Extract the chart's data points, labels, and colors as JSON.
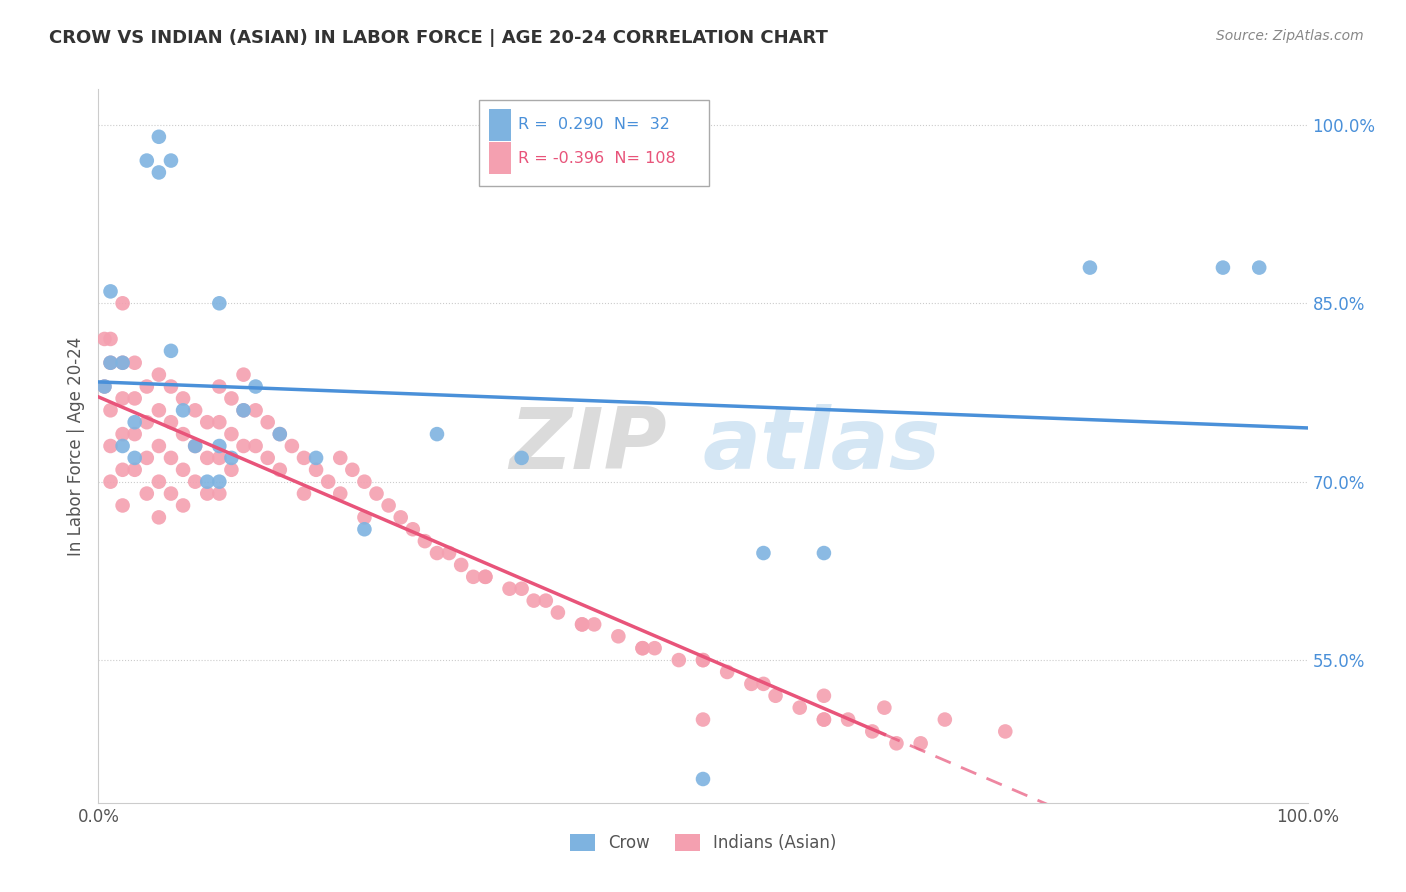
{
  "title": "CROW VS INDIAN (ASIAN) IN LABOR FORCE | AGE 20-24 CORRELATION CHART",
  "source": "Source: ZipAtlas.com",
  "ylabel": "In Labor Force | Age 20-24",
  "xlim": [
    0.0,
    1.0
  ],
  "ylim": [
    0.43,
    1.03
  ],
  "xticks": [
    0.0,
    1.0
  ],
  "xticklabels": [
    "0.0%",
    "100.0%"
  ],
  "yticks": [
    0.55,
    0.7,
    0.85,
    1.0
  ],
  "yticklabels": [
    "55.0%",
    "70.0%",
    "85.0%",
    "100.0%"
  ],
  "crow_R": 0.29,
  "crow_N": 32,
  "indian_R": -0.396,
  "indian_N": 108,
  "crow_color": "#7eb3e0",
  "indian_color": "#f4a0b0",
  "crow_line_color": "#4a90d9",
  "indian_line_color": "#e8547a",
  "watermark_zip": "ZIP",
  "watermark_atlas": "atlas",
  "crow_scatter_x": [
    0.005,
    0.01,
    0.01,
    0.02,
    0.02,
    0.03,
    0.03,
    0.04,
    0.05,
    0.05,
    0.06,
    0.06,
    0.07,
    0.08,
    0.09,
    0.1,
    0.1,
    0.1,
    0.11,
    0.12,
    0.13,
    0.15,
    0.18,
    0.22,
    0.28,
    0.35,
    0.5,
    0.55,
    0.6,
    0.82,
    0.93,
    0.96
  ],
  "crow_scatter_y": [
    0.78,
    0.8,
    0.86,
    0.73,
    0.8,
    0.75,
    0.72,
    0.97,
    0.99,
    0.96,
    0.97,
    0.81,
    0.76,
    0.73,
    0.7,
    0.73,
    0.7,
    0.85,
    0.72,
    0.76,
    0.78,
    0.74,
    0.72,
    0.66,
    0.74,
    0.72,
    0.45,
    0.64,
    0.64,
    0.88,
    0.88,
    0.88
  ],
  "indian_scatter_x": [
    0.005,
    0.005,
    0.01,
    0.01,
    0.01,
    0.01,
    0.01,
    0.02,
    0.02,
    0.02,
    0.02,
    0.02,
    0.02,
    0.03,
    0.03,
    0.03,
    0.03,
    0.04,
    0.04,
    0.04,
    0.04,
    0.05,
    0.05,
    0.05,
    0.05,
    0.05,
    0.06,
    0.06,
    0.06,
    0.06,
    0.07,
    0.07,
    0.07,
    0.07,
    0.08,
    0.08,
    0.08,
    0.09,
    0.09,
    0.09,
    0.1,
    0.1,
    0.1,
    0.1,
    0.11,
    0.11,
    0.11,
    0.12,
    0.12,
    0.12,
    0.13,
    0.13,
    0.14,
    0.14,
    0.15,
    0.15,
    0.16,
    0.17,
    0.17,
    0.18,
    0.19,
    0.2,
    0.2,
    0.21,
    0.22,
    0.22,
    0.23,
    0.24,
    0.25,
    0.26,
    0.27,
    0.28,
    0.29,
    0.3,
    0.31,
    0.32,
    0.34,
    0.35,
    0.37,
    0.38,
    0.4,
    0.41,
    0.43,
    0.45,
    0.46,
    0.48,
    0.5,
    0.52,
    0.54,
    0.56,
    0.58,
    0.6,
    0.62,
    0.64,
    0.66,
    0.68,
    0.32,
    0.36,
    0.4,
    0.45,
    0.5,
    0.55,
    0.6,
    0.65,
    0.7,
    0.75,
    0.5,
    0.6
  ],
  "indian_scatter_y": [
    0.78,
    0.82,
    0.8,
    0.82,
    0.76,
    0.73,
    0.7,
    0.85,
    0.8,
    0.77,
    0.74,
    0.71,
    0.68,
    0.8,
    0.77,
    0.74,
    0.71,
    0.78,
    0.75,
    0.72,
    0.69,
    0.79,
    0.76,
    0.73,
    0.7,
    0.67,
    0.78,
    0.75,
    0.72,
    0.69,
    0.77,
    0.74,
    0.71,
    0.68,
    0.76,
    0.73,
    0.7,
    0.75,
    0.72,
    0.69,
    0.78,
    0.75,
    0.72,
    0.69,
    0.77,
    0.74,
    0.71,
    0.79,
    0.76,
    0.73,
    0.76,
    0.73,
    0.75,
    0.72,
    0.74,
    0.71,
    0.73,
    0.72,
    0.69,
    0.71,
    0.7,
    0.72,
    0.69,
    0.71,
    0.7,
    0.67,
    0.69,
    0.68,
    0.67,
    0.66,
    0.65,
    0.64,
    0.64,
    0.63,
    0.62,
    0.62,
    0.61,
    0.61,
    0.6,
    0.59,
    0.58,
    0.58,
    0.57,
    0.56,
    0.56,
    0.55,
    0.55,
    0.54,
    0.53,
    0.52,
    0.51,
    0.5,
    0.5,
    0.49,
    0.48,
    0.48,
    0.62,
    0.6,
    0.58,
    0.56,
    0.55,
    0.53,
    0.52,
    0.51,
    0.5,
    0.49,
    0.5,
    0.5
  ]
}
